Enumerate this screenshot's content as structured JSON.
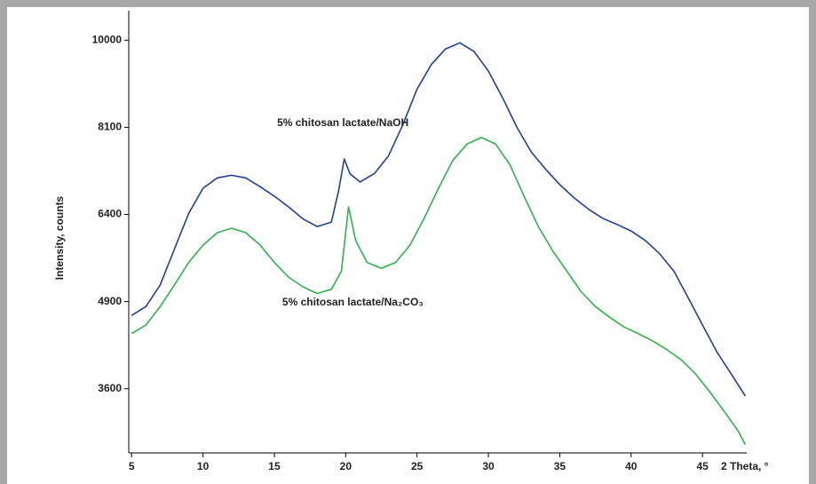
{
  "chart_data": {
    "type": "line",
    "yscale": "sqrt",
    "ylabel": "Intensity, counts",
    "xlabel": "2 Theta, °",
    "xlim": [
      4.8,
      48.1
    ],
    "xticks": [
      5,
      10,
      15,
      20,
      25,
      30,
      35,
      40,
      45
    ],
    "ylim": [
      2770,
      10690
    ],
    "yticks": [
      3600,
      4900,
      6400,
      8100,
      10000
    ],
    "annotations": [
      {
        "text": "5% chitosan lactate/NaOH",
        "x": 19.8,
        "y": 8180
      },
      {
        "text": "5% chitosan lactate/Na₂CO₃",
        "x": 20.5,
        "y": 4880
      }
    ],
    "series": [
      {
        "name": "5% chitosan lactate/NaOH",
        "color": "#1f3f9a",
        "x": [
          5,
          6,
          7,
          8,
          9,
          10,
          11,
          12,
          13,
          14,
          15,
          16,
          17,
          18,
          19,
          19.5,
          19.9,
          20.3,
          21,
          22,
          23,
          24,
          25,
          26,
          27,
          28,
          29,
          30,
          31,
          32,
          33,
          34,
          35,
          36,
          37,
          38,
          39,
          40,
          41,
          42,
          43,
          44,
          45,
          46,
          47,
          48
        ],
        "values": [
          4680,
          4820,
          5170,
          5780,
          6420,
          6890,
          7090,
          7140,
          7090,
          6920,
          6740,
          6540,
          6320,
          6180,
          6260,
          6840,
          7460,
          7170,
          7010,
          7170,
          7520,
          8150,
          8910,
          9450,
          9800,
          9940,
          9740,
          9300,
          8720,
          8100,
          7600,
          7260,
          6960,
          6710,
          6500,
          6330,
          6220,
          6100,
          5930,
          5700,
          5400,
          4960,
          4530,
          4130,
          3810,
          3500
        ]
      },
      {
        "name": "5% chitosan lactate/Na₂CO₃",
        "color": "#2db34a",
        "x": [
          5,
          6,
          7,
          8,
          9,
          10,
          11,
          12,
          13,
          14,
          15,
          16,
          17,
          18,
          19,
          19.7,
          20.2,
          20.7,
          21.5,
          22.5,
          23.5,
          24.5,
          25.5,
          26.5,
          27.5,
          28.5,
          29.5,
          30.5,
          31.5,
          32.5,
          33.5,
          34.5,
          35.5,
          36.5,
          37.5,
          38.5,
          39.5,
          40.5,
          41.5,
          42.5,
          43.5,
          44.5,
          45.5,
          46.5,
          47.5,
          48
        ],
        "values": [
          4400,
          4530,
          4820,
          5170,
          5550,
          5850,
          6070,
          6150,
          6070,
          5850,
          5550,
          5300,
          5140,
          5030,
          5100,
          5400,
          6540,
          5930,
          5550,
          5450,
          5550,
          5850,
          6330,
          6890,
          7430,
          7760,
          7890,
          7760,
          7350,
          6740,
          6180,
          5750,
          5400,
          5060,
          4820,
          4650,
          4500,
          4400,
          4290,
          4160,
          4010,
          3810,
          3560,
          3300,
          3040,
          2870
        ]
      }
    ]
  }
}
